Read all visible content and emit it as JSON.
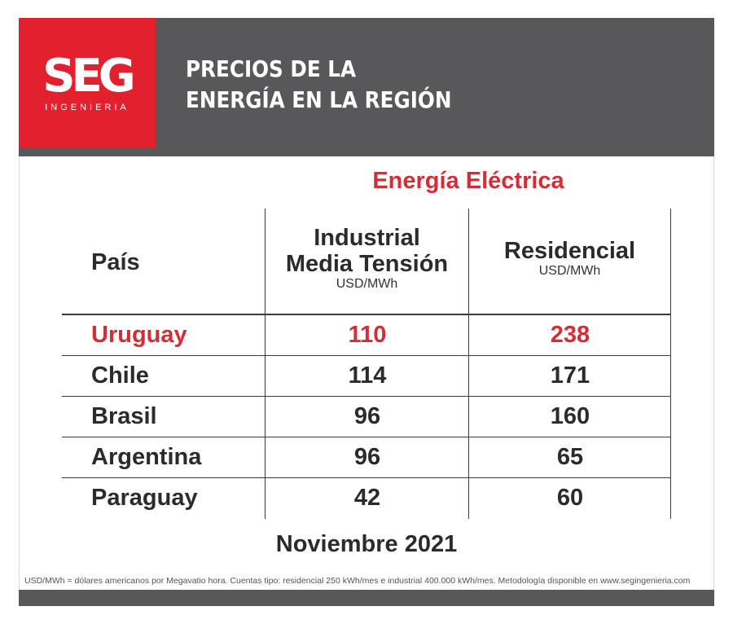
{
  "brand": {
    "logo_text": "SEG",
    "logo_subtext": "INGENIERIA",
    "colors": {
      "red": "#e3202e",
      "header_gray": "#58585a",
      "accent_red_text": "#d42d35"
    }
  },
  "header": {
    "title_line1": "PRECIOS DE LA",
    "title_line2": "ENERGÍA EN LA REGIÓN"
  },
  "table": {
    "group_title": "Energía Eléctrica",
    "country_header": "País",
    "col1_header_line1": "Industrial",
    "col1_header_line2": "Media Tensión",
    "col1_unit": "USD/MWh",
    "col2_header": "Residencial",
    "col2_unit": "USD/MWh",
    "rows": [
      {
        "country": "Uruguay",
        "industrial": "110",
        "residencial": "238"
      },
      {
        "country": "Chile",
        "industrial": "114",
        "residencial": "171"
      },
      {
        "country": "Brasil",
        "industrial": "96",
        "residencial": "160"
      },
      {
        "country": "Argentina",
        "industrial": "96",
        "residencial": "65"
      },
      {
        "country": "Paraguay",
        "industrial": "42",
        "residencial": "60"
      }
    ]
  },
  "footer": {
    "date": "Noviembre 2021",
    "note": "USD/MWh = dólares americanos por Megavatio hora. Cuentas tipo: residencial 250 kWh/mes e industrial 400.000 kWh/mes. Metodología disponible en www.segingenieria.com"
  },
  "chart_data": {
    "type": "table",
    "title": "PRECIOS DE LA ENERGÍA EN LA REGIÓN",
    "subtitle": "Energía Eléctrica",
    "columns": [
      "País",
      "Industrial Media Tensión (USD/MWh)",
      "Residencial (USD/MWh)"
    ],
    "categories": [
      "Uruguay",
      "Chile",
      "Brasil",
      "Argentina",
      "Paraguay"
    ],
    "series": [
      {
        "name": "Industrial Media Tensión",
        "values": [
          110,
          114,
          96,
          96,
          42
        ]
      },
      {
        "name": "Residencial",
        "values": [
          238,
          171,
          160,
          65,
          60
        ]
      }
    ],
    "highlight": "Uruguay",
    "date": "Noviembre 2021"
  }
}
